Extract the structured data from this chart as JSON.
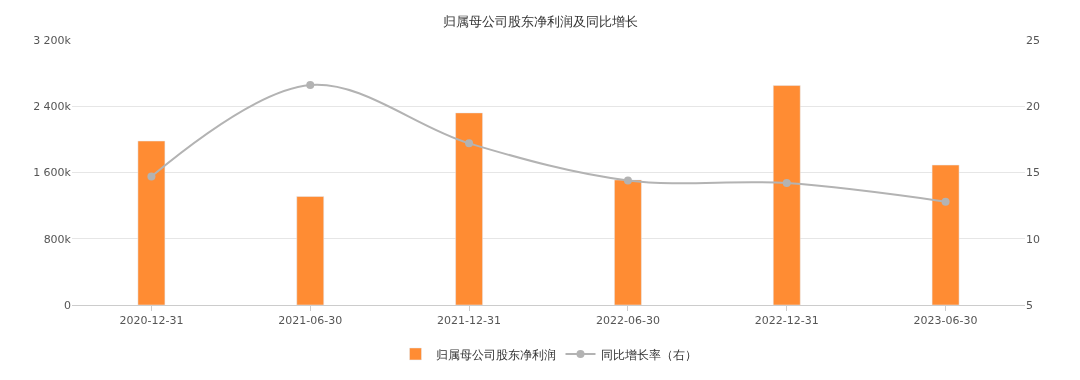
{
  "chart_data": {
    "type": "bar",
    "title": "归属母公司股东净利润及同比增长",
    "categories": [
      "2020-12-31",
      "2021-06-30",
      "2021-12-31",
      "2022-06-30",
      "2022-12-31",
      "2023-06-30"
    ],
    "series": [
      {
        "name": "归属母公司股东净利润",
        "color": "#ff8c33",
        "values": [
          1980,
          1310,
          2320,
          1510,
          2650,
          1690
        ]
      },
      {
        "name": "同比增长率（右）",
        "type": "line",
        "axis": "y2",
        "color": "#b3b3b3",
        "values": [
          14.7,
          21.6,
          17.2,
          14.4,
          14.2,
          12.8
        ]
      }
    ],
    "ylim": [
      0,
      3200
    ],
    "yticks": [
      0,
      {
        "value": 800,
        "label": "800k"
      },
      {
        "value": 1600,
        "label": "1 600k"
      },
      {
        "value": 2400,
        "label": "2 400k"
      },
      {
        "value": 3200,
        "label": "3 200k"
      }
    ],
    "y2lim": [
      5,
      25
    ],
    "y2ticks": [
      5,
      10,
      15,
      20,
      25
    ],
    "grid": "y",
    "legend": "bottom",
    "marker": "circle",
    "line_style": "solid"
  }
}
